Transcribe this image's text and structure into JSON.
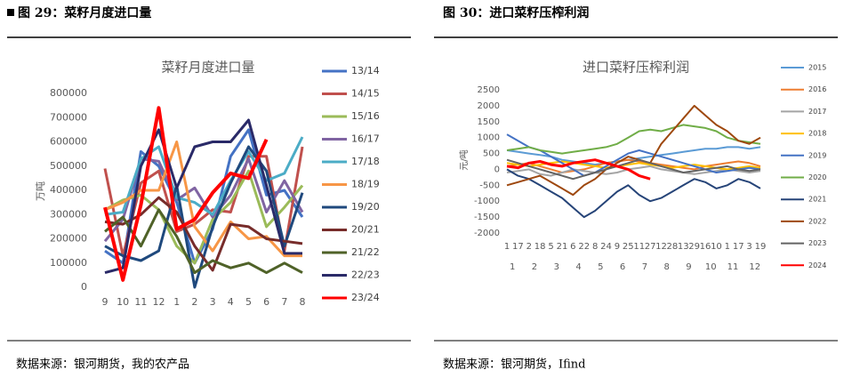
{
  "header": {
    "left": "图 29：菜籽月度进口量",
    "right": "图 30：进口菜籽压榨利润"
  },
  "source": {
    "left": "数据来源：银河期货，我的农产品",
    "right": "数据来源：银河期货，Ifind"
  },
  "chart_data": [
    {
      "type": "line",
      "title": "菜籽月度进口量",
      "y_label": "万吨",
      "categories": [
        "9",
        "10",
        "11",
        "12",
        "1",
        "2",
        "3",
        "4",
        "5",
        "6",
        "7",
        "8"
      ],
      "ylim": [
        0,
        800000
      ],
      "yticks": [
        0,
        100000,
        200000,
        300000,
        400000,
        500000,
        600000,
        700000,
        800000
      ],
      "grid": false,
      "legend": "right",
      "series": [
        {
          "name": "13/14",
          "color": "#4472c4",
          "values": [
            150000,
            100000,
            560000,
            500000,
            350000,
            100000,
            240000,
            540000,
            650000,
            380000,
            400000,
            290000
          ]
        },
        {
          "name": "14/15",
          "color": "#c0504d",
          "values": [
            490000,
            130000,
            430000,
            480000,
            230000,
            260000,
            320000,
            310000,
            540000,
            540000,
            150000,
            580000
          ]
        },
        {
          "name": "15/16",
          "color": "#9bbb59",
          "values": [
            320000,
            360000,
            380000,
            320000,
            170000,
            100000,
            280000,
            350000,
            480000,
            250000,
            330000,
            420000
          ]
        },
        {
          "name": "16/17",
          "color": "#8064a2",
          "values": [
            190000,
            280000,
            530000,
            520000,
            360000,
            410000,
            290000,
            380000,
            530000,
            310000,
            440000,
            310000
          ]
        },
        {
          "name": "17/18",
          "color": "#4bacc6",
          "values": [
            300000,
            310000,
            530000,
            580000,
            370000,
            350000,
            300000,
            440000,
            560000,
            440000,
            470000,
            620000
          ]
        },
        {
          "name": "18/19",
          "color": "#f79646",
          "values": [
            320000,
            350000,
            400000,
            400000,
            600000,
            250000,
            150000,
            270000,
            200000,
            210000,
            130000,
            130000
          ]
        },
        {
          "name": "19/20",
          "color": "#1f497d",
          "values": [
            170000,
            130000,
            110000,
            150000,
            420000,
            0,
            250000,
            430000,
            580000,
            480000,
            170000,
            390000
          ]
        },
        {
          "name": "20/21",
          "color": "#772c2a",
          "values": [
            270000,
            260000,
            300000,
            370000,
            310000,
            170000,
            70000,
            260000,
            250000,
            200000,
            190000,
            180000
          ]
        },
        {
          "name": "21/22",
          "color": "#4f6228",
          "values": [
            230000,
            290000,
            170000,
            320000,
            210000,
            60000,
            110000,
            80000,
            100000,
            60000,
            100000,
            60000
          ]
        },
        {
          "name": "22/23",
          "color": "#2a2a68",
          "values": [
            60000,
            80000,
            500000,
            650000,
            410000,
            580000,
            600000,
            600000,
            690000,
            420000,
            140000,
            140000
          ]
        },
        {
          "name": "23/24",
          "color": "#ff0000",
          "values": [
            330000,
            30000,
            340000,
            740000,
            240000,
            280000,
            390000,
            470000,
            450000,
            610000,
            null,
            null
          ]
        }
      ]
    },
    {
      "type": "line",
      "title": "进口菜籽压榨利润",
      "y_label": "元/吨",
      "categories": [
        "1",
        "17",
        "2",
        "18",
        "5",
        "21",
        "6",
        "22",
        "8",
        "24",
        "9",
        "25",
        "11",
        "27",
        "12",
        "28",
        "13",
        "29",
        "16",
        "10",
        "1",
        "17",
        "3",
        "19"
      ],
      "x_groups": [
        "1",
        "2",
        "3",
        "4",
        "5",
        "6",
        "7",
        "8",
        "9",
        "10",
        "11",
        "12"
      ],
      "ylim": [
        -2000,
        2500
      ],
      "yticks": [
        -2000,
        -1500,
        -1000,
        -500,
        0,
        500,
        1000,
        1500,
        2000,
        2500
      ],
      "grid": false,
      "legend": "right",
      "series": [
        {
          "name": "2015",
          "color": "#5b9bd5",
          "values": [
            600,
            550,
            500,
            450,
            400,
            300,
            250,
            200,
            150,
            200,
            250,
            300,
            350,
            400,
            450,
            500,
            550,
            600,
            650,
            650,
            700,
            700,
            650,
            700
          ]
        },
        {
          "name": "2016",
          "color": "#ed7d31",
          "values": [
            100,
            150,
            200,
            100,
            0,
            -100,
            -50,
            0,
            100,
            200,
            250,
            300,
            250,
            200,
            150,
            100,
            50,
            0,
            100,
            150,
            200,
            250,
            200,
            100
          ]
        },
        {
          "name": "2017",
          "color": "#a5a5a5",
          "values": [
            -100,
            -50,
            0,
            -150,
            -200,
            -100,
            0,
            -50,
            -100,
            -150,
            -100,
            0,
            50,
            100,
            0,
            -50,
            -100,
            -150,
            -100,
            -50,
            0,
            -50,
            -100,
            -50
          ]
        },
        {
          "name": "2018",
          "color": "#ffc000",
          "values": [
            200,
            150,
            100,
            150,
            200,
            250,
            200,
            150,
            100,
            50,
            100,
            150,
            200,
            150,
            100,
            50,
            100,
            150,
            100,
            50,
            0,
            50,
            100,
            50
          ]
        },
        {
          "name": "2019",
          "color": "#4472c4",
          "values": [
            1100,
            900,
            700,
            600,
            400,
            200,
            0,
            -200,
            -100,
            100,
            300,
            500,
            600,
            500,
            400,
            300,
            200,
            100,
            0,
            -100,
            -50,
            0,
            50,
            0
          ]
        },
        {
          "name": "2020",
          "color": "#70ad47",
          "values": [
            600,
            650,
            700,
            600,
            550,
            500,
            550,
            600,
            650,
            700,
            800,
            1000,
            1200,
            1250,
            1200,
            1300,
            1400,
            1350,
            1300,
            1200,
            1000,
            900,
            850,
            800
          ]
        },
        {
          "name": "2021",
          "color": "#264478",
          "values": [
            0,
            -200,
            -300,
            -500,
            -700,
            -900,
            -1200,
            -1500,
            -1300,
            -1000,
            -700,
            -500,
            -800,
            -1000,
            -900,
            -700,
            -500,
            -300,
            -400,
            -600,
            -500,
            -300,
            -400,
            -600
          ]
        },
        {
          "name": "2022",
          "color": "#9e480e",
          "values": [
            -500,
            -400,
            -300,
            -200,
            -400,
            -600,
            -800,
            -500,
            -300,
            0,
            200,
            400,
            300,
            200,
            800,
            1200,
            1600,
            2000,
            1700,
            1400,
            1200,
            900,
            800,
            1000
          ]
        },
        {
          "name": "2023",
          "color": "#636363",
          "values": [
            300,
            200,
            100,
            0,
            -100,
            -200,
            -300,
            -200,
            -100,
            0,
            100,
            200,
            300,
            200,
            100,
            0,
            -100,
            -50,
            0,
            50,
            100,
            0,
            -50,
            0
          ]
        },
        {
          "name": "2024",
          "color": "#ff0000",
          "values": [
            100,
            50,
            200,
            250,
            150,
            100,
            200,
            250,
            300,
            200,
            100,
            0,
            -200,
            -300,
            null,
            null,
            null,
            null,
            null,
            null,
            null,
            null,
            null,
            null
          ]
        }
      ]
    }
  ]
}
